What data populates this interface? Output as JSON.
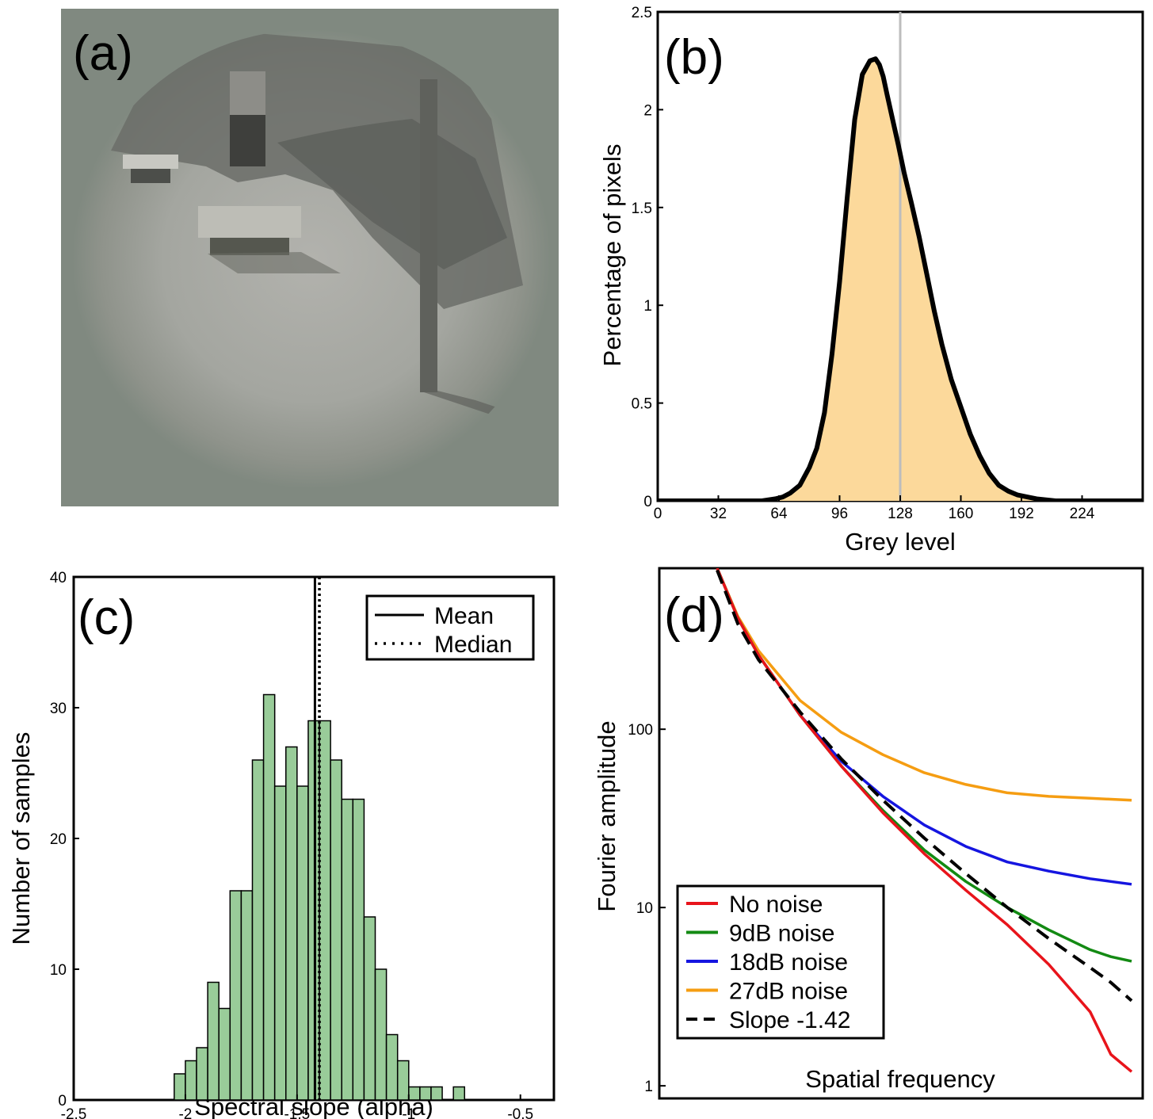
{
  "panel_labels": {
    "a": "(a)",
    "b": "(b)",
    "c": "(c)",
    "d": "(d)"
  },
  "chart_data": [
    {
      "panel": "b",
      "type": "area",
      "xlabel": "Grey level",
      "ylabel": "Percentage of pixels",
      "xlim": [
        0,
        256
      ],
      "ylim": [
        0,
        2.5
      ],
      "xticks": [
        "0",
        "32",
        "64",
        "96",
        "128",
        "160",
        "192",
        "224"
      ],
      "yticks": [
        "0",
        "0.5",
        "1",
        "1.5",
        "2",
        "2.5"
      ],
      "reference_line_x": 128,
      "x": [
        0,
        55,
        62,
        66,
        70,
        75,
        80,
        84,
        88,
        92,
        96,
        100,
        104,
        108,
        112,
        115,
        117,
        119,
        121,
        124,
        127,
        130,
        134,
        138,
        142,
        146,
        150,
        155,
        160,
        165,
        170,
        175,
        180,
        185,
        190,
        195,
        200,
        210,
        256
      ],
      "y": [
        0,
        0,
        0.01,
        0.02,
        0.04,
        0.08,
        0.17,
        0.27,
        0.45,
        0.75,
        1.12,
        1.55,
        1.95,
        2.18,
        2.25,
        2.26,
        2.23,
        2.17,
        2.08,
        1.95,
        1.82,
        1.68,
        1.52,
        1.35,
        1.16,
        0.97,
        0.8,
        0.62,
        0.48,
        0.34,
        0.23,
        0.14,
        0.08,
        0.05,
        0.03,
        0.02,
        0.01,
        0,
        0
      ],
      "colors": {
        "fill": "#fcd99b",
        "line": "#000000",
        "reference": "#bdbdbd"
      }
    },
    {
      "panel": "c",
      "type": "bar",
      "xlabel": "Spectral slope (alpha)",
      "ylabel": "Number of samples",
      "xlim": [
        -2.5,
        -0.35
      ],
      "ylim": [
        0,
        40
      ],
      "xticks": [
        "-2.5",
        "-2",
        "-1.5",
        "-1",
        "-0.5"
      ],
      "yticks": [
        "0",
        "10",
        "20",
        "30",
        "40"
      ],
      "bin_width": 0.05,
      "bin_starts": [
        -2.05,
        -2.0,
        -1.95,
        -1.9,
        -1.85,
        -1.8,
        -1.75,
        -1.7,
        -1.65,
        -1.6,
        -1.55,
        -1.5,
        -1.45,
        -1.4,
        -1.35,
        -1.3,
        -1.25,
        -1.2,
        -1.15,
        -1.1,
        -1.05,
        -1.0,
        -0.95,
        -0.9,
        -0.85,
        -0.8,
        -0.75,
        -0.7
      ],
      "values": [
        2,
        3,
        4,
        9,
        7,
        16,
        16,
        26,
        31,
        24,
        27,
        24,
        29,
        29,
        26,
        23,
        23,
        14,
        10,
        5,
        3,
        1,
        1,
        1,
        0,
        1,
        0,
        0
      ],
      "mean": -1.42,
      "median": -1.4,
      "legend": [
        "Mean",
        "Median"
      ],
      "legend_position": "top-right",
      "colors": {
        "bar": "#99cc99",
        "edge": "#000000"
      }
    },
    {
      "panel": "d",
      "type": "line",
      "xlabel": "Spatial frequency",
      "ylabel": "Fourier amplitude",
      "yscale": "log",
      "ylim": [
        0.85,
        800
      ],
      "yticks": [
        "1",
        "10",
        "100"
      ],
      "x": [
        0,
        0.05,
        0.1,
        0.2,
        0.3,
        0.4,
        0.5,
        0.6,
        0.7,
        0.8,
        0.9,
        0.95,
        1.0
      ],
      "series": [
        {
          "name": "No noise",
          "color": "#e8141b",
          "values": [
            800,
            420,
            260,
            120,
            62,
            34,
            20,
            12.5,
            8,
            4.8,
            2.6,
            1.5,
            1.2
          ]
        },
        {
          "name": "9dB noise",
          "color": "#138a13",
          "values": [
            800,
            420,
            260,
            120,
            62,
            35,
            21,
            14,
            10,
            7.5,
            5.8,
            5.3,
            5.0
          ]
        },
        {
          "name": "18dB noise",
          "color": "#1515e0",
          "values": [
            800,
            420,
            260,
            120,
            66,
            42,
            29,
            22,
            18,
            16,
            14.5,
            14,
            13.5
          ]
        },
        {
          "name": "27dB noise",
          "color": "#f59d12",
          "values": [
            800,
            430,
            275,
            145,
            96,
            72,
            57,
            49,
            44,
            42,
            41,
            40.5,
            40
          ]
        },
        {
          "name": "Slope -1.42",
          "color": "#000000",
          "dashed": true,
          "values": [
            780,
            390,
            245,
            125,
            68,
            40,
            24.5,
            15.5,
            10,
            6.7,
            4.6,
            3.8,
            3.0
          ]
        }
      ],
      "legend_position": "bottom-left"
    }
  ]
}
